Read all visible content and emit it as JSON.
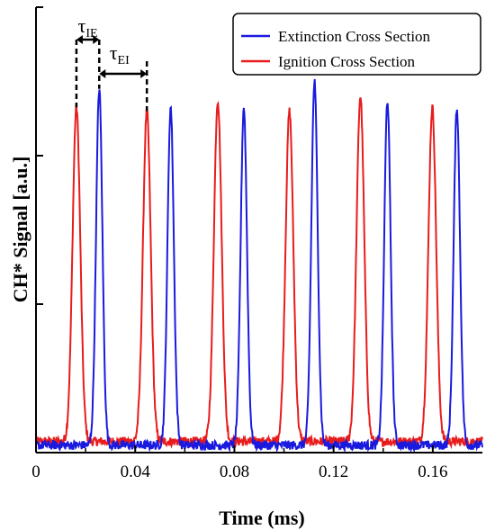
{
  "chart_data": {
    "type": "line",
    "xlabel": "Time (ms)",
    "ylabel": "CH* Signal [a.u.]",
    "xlim": [
      0,
      0.18
    ],
    "ylim": [
      0,
      1.2
    ],
    "x_ticks": [
      "0",
      "0.04",
      "0.08",
      "0.12",
      "0.16"
    ],
    "x_tick_values": [
      0,
      0.04,
      0.08,
      0.12,
      0.16
    ],
    "y_tick_values": [
      0,
      0.4,
      0.8,
      1.2
    ],
    "grid": false,
    "legend_position": "top-right",
    "series": [
      {
        "name": "Extinction Cross Section",
        "color": "#1a1adf",
        "baseline": 0.02,
        "peak_width_ms": 0.0018,
        "peaks": [
          {
            "x": 0.0255,
            "y": 0.98
          },
          {
            "x": 0.0543,
            "y": 0.93
          },
          {
            "x": 0.0838,
            "y": 0.93
          },
          {
            "x": 0.1123,
            "y": 1.0
          },
          {
            "x": 0.1417,
            "y": 0.95
          },
          {
            "x": 0.1697,
            "y": 0.93
          }
        ]
      },
      {
        "name": "Ignition Cross Section",
        "color": "#e81c1c",
        "baseline": 0.03,
        "peak_width_ms": 0.0022,
        "peaks": [
          {
            "x": 0.0163,
            "y": 0.93
          },
          {
            "x": 0.0447,
            "y": 0.92
          },
          {
            "x": 0.0733,
            "y": 0.95
          },
          {
            "x": 0.1022,
            "y": 0.92
          },
          {
            "x": 0.1308,
            "y": 0.96
          },
          {
            "x": 0.1598,
            "y": 0.93
          }
        ]
      }
    ],
    "annotations": [
      {
        "symbol": "τ",
        "subscript": "IE",
        "from_x": 0.0163,
        "to_x": 0.0255
      },
      {
        "symbol": "τ",
        "subscript": "EI",
        "from_x": 0.0255,
        "to_x": 0.0447
      }
    ]
  }
}
